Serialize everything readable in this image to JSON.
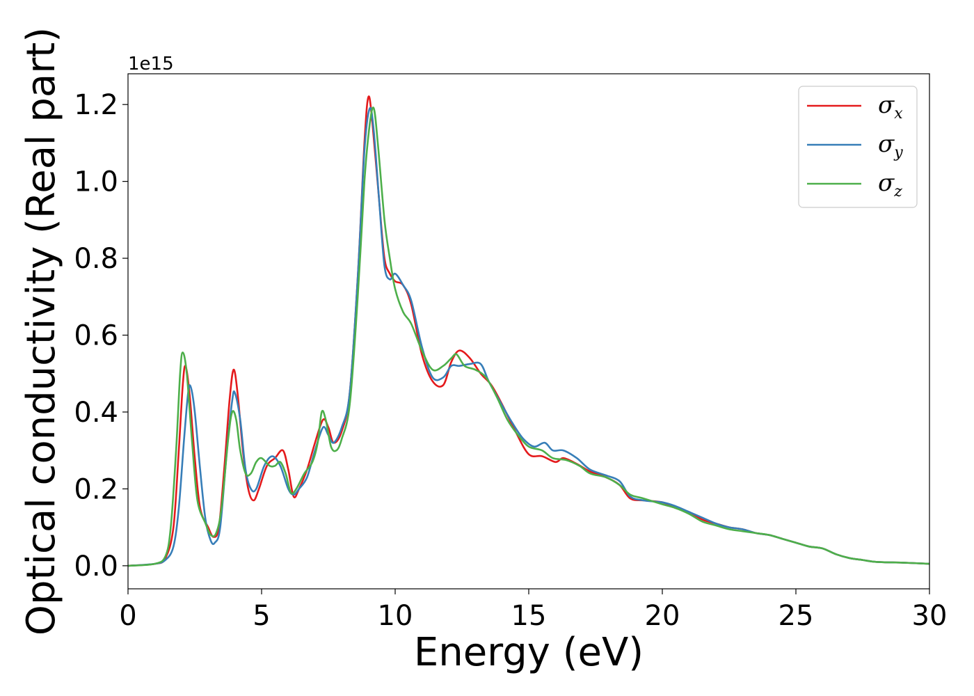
{
  "chart_data": {
    "type": "line",
    "title": "",
    "xlabel": "Energy (eV)",
    "ylabel": "Optical conductivity (Real part)",
    "y_offset_text": "1e15",
    "xlim": [
      0,
      30
    ],
    "ylim": [
      -0.06,
      1.28
    ],
    "x_ticks": [
      0,
      5,
      10,
      15,
      20,
      25,
      30
    ],
    "x_tick_labels": [
      "0",
      "5",
      "10",
      "15",
      "20",
      "25",
      "30"
    ],
    "y_ticks": [
      0.0,
      0.2,
      0.4,
      0.6,
      0.8,
      1.0,
      1.2
    ],
    "y_tick_labels": [
      "0.0",
      "0.2",
      "0.4",
      "0.6",
      "0.8",
      "1.0",
      "1.2"
    ],
    "grid": false,
    "legend_position": "top-right",
    "series": [
      {
        "name": "σ_x",
        "symbol": "σ",
        "subscript": "x",
        "color": "#e41a1c",
        "points": [
          [
            0,
            0
          ],
          [
            1,
            0.005
          ],
          [
            1.4,
            0.02
          ],
          [
            1.7,
            0.1
          ],
          [
            1.9,
            0.3
          ],
          [
            2.05,
            0.47
          ],
          [
            2.15,
            0.52
          ],
          [
            2.3,
            0.45
          ],
          [
            2.5,
            0.28
          ],
          [
            2.7,
            0.15
          ],
          [
            3.0,
            0.1
          ],
          [
            3.2,
            0.075
          ],
          [
            3.4,
            0.1
          ],
          [
            3.6,
            0.25
          ],
          [
            3.8,
            0.43
          ],
          [
            3.95,
            0.51
          ],
          [
            4.1,
            0.45
          ],
          [
            4.3,
            0.3
          ],
          [
            4.5,
            0.2
          ],
          [
            4.7,
            0.17
          ],
          [
            4.9,
            0.2
          ],
          [
            5.2,
            0.26
          ],
          [
            5.5,
            0.28
          ],
          [
            5.8,
            0.3
          ],
          [
            6.0,
            0.25
          ],
          [
            6.2,
            0.18
          ],
          [
            6.4,
            0.2
          ],
          [
            6.7,
            0.25
          ],
          [
            7.0,
            0.32
          ],
          [
            7.3,
            0.38
          ],
          [
            7.5,
            0.36
          ],
          [
            7.7,
            0.32
          ],
          [
            8.0,
            0.35
          ],
          [
            8.3,
            0.45
          ],
          [
            8.6,
            0.75
          ],
          [
            8.85,
            1.1
          ],
          [
            9.0,
            1.22
          ],
          [
            9.15,
            1.15
          ],
          [
            9.4,
            0.95
          ],
          [
            9.6,
            0.8
          ],
          [
            9.8,
            0.76
          ],
          [
            10.0,
            0.74
          ],
          [
            10.3,
            0.73
          ],
          [
            10.6,
            0.68
          ],
          [
            11.0,
            0.55
          ],
          [
            11.4,
            0.48
          ],
          [
            11.8,
            0.47
          ],
          [
            12.1,
            0.53
          ],
          [
            12.4,
            0.56
          ],
          [
            12.8,
            0.54
          ],
          [
            13.2,
            0.5
          ],
          [
            13.6,
            0.47
          ],
          [
            14.0,
            0.42
          ],
          [
            14.5,
            0.35
          ],
          [
            15.0,
            0.29
          ],
          [
            15.5,
            0.285
          ],
          [
            16.0,
            0.27
          ],
          [
            16.3,
            0.28
          ],
          [
            16.8,
            0.265
          ],
          [
            17.3,
            0.245
          ],
          [
            17.9,
            0.23
          ],
          [
            18.4,
            0.21
          ],
          [
            18.8,
            0.175
          ],
          [
            19.3,
            0.17
          ],
          [
            20.0,
            0.165
          ],
          [
            20.5,
            0.15
          ],
          [
            21.0,
            0.14
          ],
          [
            21.5,
            0.12
          ],
          [
            22.0,
            0.11
          ],
          [
            22.5,
            0.1
          ],
          [
            23.0,
            0.095
          ],
          [
            23.5,
            0.085
          ],
          [
            24.0,
            0.08
          ],
          [
            24.5,
            0.07
          ],
          [
            25.0,
            0.06
          ],
          [
            25.5,
            0.05
          ],
          [
            26.0,
            0.045
          ],
          [
            26.5,
            0.03
          ],
          [
            27.0,
            0.02
          ],
          [
            27.5,
            0.015
          ],
          [
            28.0,
            0.01
          ],
          [
            29.0,
            0.008
          ],
          [
            30.0,
            0.005
          ]
        ]
      },
      {
        "name": "σ_y",
        "symbol": "σ",
        "subscript": "y",
        "color": "#377eb8",
        "points": [
          [
            0,
            0
          ],
          [
            1,
            0.005
          ],
          [
            1.4,
            0.015
          ],
          [
            1.7,
            0.05
          ],
          [
            1.9,
            0.15
          ],
          [
            2.1,
            0.33
          ],
          [
            2.25,
            0.45
          ],
          [
            2.35,
            0.465
          ],
          [
            2.5,
            0.4
          ],
          [
            2.7,
            0.25
          ],
          [
            2.9,
            0.12
          ],
          [
            3.1,
            0.065
          ],
          [
            3.25,
            0.06
          ],
          [
            3.45,
            0.1
          ],
          [
            3.7,
            0.3
          ],
          [
            3.9,
            0.43
          ],
          [
            4.0,
            0.45
          ],
          [
            4.2,
            0.38
          ],
          [
            4.4,
            0.25
          ],
          [
            4.6,
            0.2
          ],
          [
            4.8,
            0.2
          ],
          [
            5.1,
            0.26
          ],
          [
            5.4,
            0.285
          ],
          [
            5.7,
            0.26
          ],
          [
            6.0,
            0.2
          ],
          [
            6.2,
            0.185
          ],
          [
            6.4,
            0.2
          ],
          [
            6.7,
            0.23
          ],
          [
            7.0,
            0.3
          ],
          [
            7.3,
            0.36
          ],
          [
            7.5,
            0.34
          ],
          [
            7.7,
            0.32
          ],
          [
            8.0,
            0.36
          ],
          [
            8.3,
            0.45
          ],
          [
            8.6,
            0.75
          ],
          [
            8.85,
            1.08
          ],
          [
            9.05,
            1.19
          ],
          [
            9.2,
            1.13
          ],
          [
            9.4,
            0.95
          ],
          [
            9.6,
            0.78
          ],
          [
            9.8,
            0.745
          ],
          [
            10.0,
            0.76
          ],
          [
            10.3,
            0.73
          ],
          [
            10.6,
            0.69
          ],
          [
            11.0,
            0.57
          ],
          [
            11.4,
            0.49
          ],
          [
            11.8,
            0.49
          ],
          [
            12.1,
            0.52
          ],
          [
            12.4,
            0.52
          ],
          [
            12.8,
            0.525
          ],
          [
            13.2,
            0.525
          ],
          [
            13.5,
            0.48
          ],
          [
            13.9,
            0.43
          ],
          [
            14.4,
            0.37
          ],
          [
            14.8,
            0.33
          ],
          [
            15.2,
            0.31
          ],
          [
            15.6,
            0.32
          ],
          [
            15.9,
            0.3
          ],
          [
            16.3,
            0.3
          ],
          [
            16.8,
            0.28
          ],
          [
            17.3,
            0.25
          ],
          [
            17.9,
            0.235
          ],
          [
            18.4,
            0.22
          ],
          [
            18.8,
            0.18
          ],
          [
            19.3,
            0.17
          ],
          [
            20.0,
            0.165
          ],
          [
            20.5,
            0.155
          ],
          [
            21.0,
            0.14
          ],
          [
            21.5,
            0.125
          ],
          [
            22.0,
            0.11
          ],
          [
            22.5,
            0.1
          ],
          [
            23.0,
            0.095
          ],
          [
            23.5,
            0.085
          ],
          [
            24.0,
            0.08
          ],
          [
            24.5,
            0.07
          ],
          [
            25.0,
            0.06
          ],
          [
            25.5,
            0.05
          ],
          [
            26.0,
            0.045
          ],
          [
            26.5,
            0.03
          ],
          [
            27.0,
            0.02
          ],
          [
            27.5,
            0.015
          ],
          [
            28.0,
            0.01
          ],
          [
            29.0,
            0.008
          ],
          [
            30.0,
            0.005
          ]
        ]
      },
      {
        "name": "σ_z",
        "symbol": "σ",
        "subscript": "z",
        "color": "#4daf4a",
        "points": [
          [
            0,
            0
          ],
          [
            1,
            0.005
          ],
          [
            1.4,
            0.025
          ],
          [
            1.6,
            0.1
          ],
          [
            1.8,
            0.3
          ],
          [
            1.95,
            0.5
          ],
          [
            2.05,
            0.555
          ],
          [
            2.2,
            0.5
          ],
          [
            2.4,
            0.32
          ],
          [
            2.6,
            0.17
          ],
          [
            2.9,
            0.11
          ],
          [
            3.1,
            0.08
          ],
          [
            3.3,
            0.085
          ],
          [
            3.5,
            0.15
          ],
          [
            3.75,
            0.33
          ],
          [
            3.9,
            0.4
          ],
          [
            4.05,
            0.38
          ],
          [
            4.2,
            0.3
          ],
          [
            4.4,
            0.24
          ],
          [
            4.6,
            0.24
          ],
          [
            4.8,
            0.27
          ],
          [
            5.0,
            0.28
          ],
          [
            5.3,
            0.26
          ],
          [
            5.5,
            0.26
          ],
          [
            5.7,
            0.27
          ],
          [
            5.9,
            0.24
          ],
          [
            6.1,
            0.19
          ],
          [
            6.3,
            0.2
          ],
          [
            6.6,
            0.24
          ],
          [
            6.9,
            0.27
          ],
          [
            7.1,
            0.32
          ],
          [
            7.25,
            0.4
          ],
          [
            7.4,
            0.38
          ],
          [
            7.6,
            0.31
          ],
          [
            7.8,
            0.3
          ],
          [
            8.0,
            0.33
          ],
          [
            8.3,
            0.42
          ],
          [
            8.6,
            0.7
          ],
          [
            8.85,
            1.0
          ],
          [
            9.05,
            1.15
          ],
          [
            9.2,
            1.19
          ],
          [
            9.35,
            1.1
          ],
          [
            9.6,
            0.9
          ],
          [
            9.8,
            0.8
          ],
          [
            10.0,
            0.72
          ],
          [
            10.3,
            0.66
          ],
          [
            10.6,
            0.63
          ],
          [
            11.0,
            0.56
          ],
          [
            11.4,
            0.51
          ],
          [
            11.8,
            0.52
          ],
          [
            12.1,
            0.54
          ],
          [
            12.3,
            0.55
          ],
          [
            12.6,
            0.52
          ],
          [
            13.0,
            0.51
          ],
          [
            13.4,
            0.49
          ],
          [
            13.8,
            0.44
          ],
          [
            14.2,
            0.38
          ],
          [
            14.6,
            0.34
          ],
          [
            15.0,
            0.31
          ],
          [
            15.5,
            0.3
          ],
          [
            15.9,
            0.28
          ],
          [
            16.4,
            0.275
          ],
          [
            16.9,
            0.26
          ],
          [
            17.3,
            0.24
          ],
          [
            17.9,
            0.23
          ],
          [
            18.4,
            0.21
          ],
          [
            18.8,
            0.185
          ],
          [
            19.3,
            0.175
          ],
          [
            20.0,
            0.16
          ],
          [
            20.5,
            0.15
          ],
          [
            21.0,
            0.135
          ],
          [
            21.5,
            0.115
          ],
          [
            22.0,
            0.105
          ],
          [
            22.5,
            0.095
          ],
          [
            23.0,
            0.09
          ],
          [
            23.5,
            0.085
          ],
          [
            24.0,
            0.08
          ],
          [
            24.5,
            0.07
          ],
          [
            25.0,
            0.06
          ],
          [
            25.5,
            0.05
          ],
          [
            26.0,
            0.045
          ],
          [
            26.5,
            0.03
          ],
          [
            27.0,
            0.02
          ],
          [
            27.5,
            0.015
          ],
          [
            28.0,
            0.01
          ],
          [
            29.0,
            0.008
          ],
          [
            30.0,
            0.005
          ]
        ]
      }
    ]
  }
}
